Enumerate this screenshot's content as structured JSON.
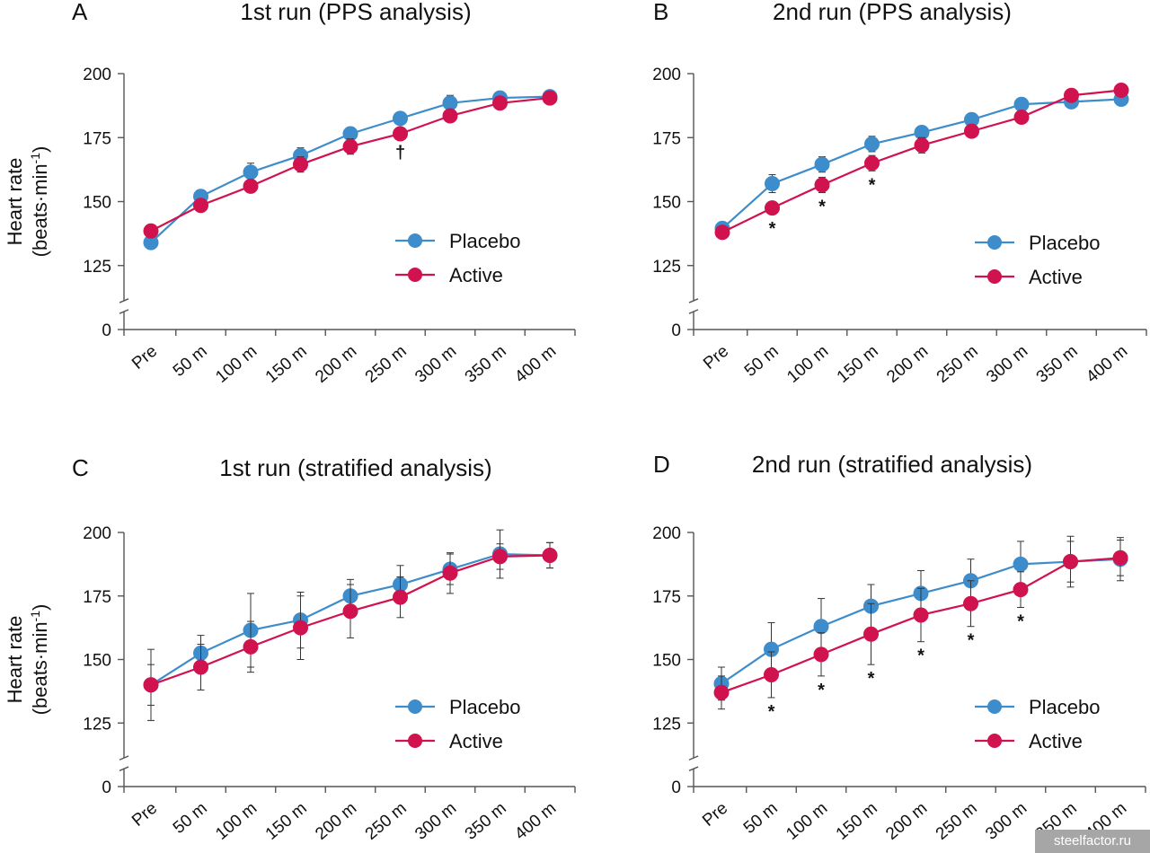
{
  "watermark": "steelfactor.ru",
  "colors": {
    "placebo": "#3d8ccb",
    "active": "#d0124f",
    "axis": "#555555",
    "error": "#333333"
  },
  "chart_data": [
    {
      "panel": "A",
      "title": "1st run (PPS analysis)",
      "type": "line",
      "ylabel": [
        "Heart rate",
        "(beats·min",
        "-1",
        ")"
      ],
      "xlabel": "",
      "categories": [
        "Pre",
        "50 m",
        "100 m",
        "150 m",
        "200 m",
        "250 m",
        "300 m",
        "350 m",
        "400 m"
      ],
      "y_ticks": [
        0,
        125,
        150,
        175,
        200
      ],
      "ylim": [
        0,
        200
      ],
      "broken_axis": true,
      "legend_position": "center-right",
      "series": [
        {
          "name": "Placebo",
          "values": [
            134,
            152,
            161.5,
            168,
            176.5,
            182.5,
            188.5,
            190.5,
            191
          ],
          "error": [
            1,
            2.5,
            3.5,
            3,
            2.5,
            1.5,
            3,
            1.5,
            1
          ]
        },
        {
          "name": "Active",
          "values": [
            138.5,
            148.5,
            156,
            164.5,
            171.5,
            176.5,
            183.5,
            188.5,
            190.5
          ],
          "error": [
            1,
            2,
            2,
            3,
            3,
            2,
            2,
            1.5,
            1
          ]
        }
      ],
      "annotations": [
        {
          "category": "250 m",
          "text": "†"
        }
      ]
    },
    {
      "panel": "B",
      "title": "2nd run (PPS analysis)",
      "type": "line",
      "ylabel": [],
      "xlabel": "",
      "categories": [
        "Pre",
        "50 m",
        "100 m",
        "150 m",
        "200 m",
        "250 m",
        "300 m",
        "350 m",
        "400 m"
      ],
      "y_ticks": [
        0,
        125,
        150,
        175,
        200
      ],
      "ylim": [
        0,
        200
      ],
      "broken_axis": true,
      "legend_position": "center-right",
      "series": [
        {
          "name": "Placebo",
          "values": [
            139.5,
            157,
            164.5,
            172.5,
            177,
            182,
            188,
            189,
            190
          ],
          "error": [
            2.5,
            3.5,
            3,
            3,
            2.5,
            2.5,
            2.5,
            1,
            1
          ]
        },
        {
          "name": "Active",
          "values": [
            138,
            147.5,
            156.5,
            165,
            172,
            177.5,
            183,
            191.5,
            193.5
          ],
          "error": [
            1.5,
            2.5,
            3,
            3,
            3,
            2,
            2,
            1.5,
            1
          ]
        }
      ],
      "annotations": [
        {
          "category": "50 m",
          "text": "*"
        },
        {
          "category": "100 m",
          "text": "*"
        },
        {
          "category": "150 m",
          "text": "*"
        }
      ]
    },
    {
      "panel": "C",
      "title": "1st run (stratified analysis)",
      "type": "line",
      "ylabel": [
        "Heart rate",
        "(beats·min",
        "-1",
        ")"
      ],
      "xlabel": "",
      "categories": [
        "Pre",
        "50 m",
        "100 m",
        "150 m",
        "200 m",
        "250 m",
        "300 m",
        "350 m",
        "400 m"
      ],
      "y_ticks": [
        0,
        125,
        150,
        175,
        200
      ],
      "ylim": [
        0,
        200
      ],
      "broken_axis": true,
      "legend_position": "center-right",
      "series": [
        {
          "name": "Placebo",
          "values": [
            140,
            152.5,
            161.5,
            165.5,
            175,
            179.5,
            185.5,
            191.5,
            191
          ],
          "error": [
            8,
            7,
            14.5,
            11,
            6.5,
            7.5,
            6,
            9.5,
            5
          ]
        },
        {
          "name": "Active",
          "values": [
            140,
            147,
            155,
            162.5,
            169,
            174.5,
            184,
            190.5,
            191
          ],
          "error": [
            14,
            9,
            10,
            12.5,
            10.5,
            8,
            8,
            5,
            5
          ]
        }
      ],
      "annotations": []
    },
    {
      "panel": "D",
      "title": "2nd run (stratified analysis)",
      "type": "line",
      "ylabel": [],
      "xlabel": "",
      "categories": [
        "Pre",
        "50 m",
        "100 m",
        "150 m",
        "200 m",
        "250 m",
        "300 m",
        "350 m",
        "400 m"
      ],
      "y_ticks": [
        0,
        125,
        150,
        175,
        200
      ],
      "ylim": [
        0,
        200
      ],
      "broken_axis": true,
      "legend_position": "center-right",
      "series": [
        {
          "name": "Placebo",
          "values": [
            140.5,
            154,
            163,
            171,
            176,
            181,
            187.5,
            188.5,
            189.5
          ],
          "error": [
            6.5,
            10.5,
            11,
            8.5,
            9,
            8.5,
            9,
            10,
            8.5
          ]
        },
        {
          "name": "Active",
          "values": [
            137,
            144,
            152,
            160,
            167.5,
            172,
            177.5,
            188.5,
            190
          ],
          "error": [
            6.5,
            9,
            8.5,
            12,
            10.5,
            9,
            7,
            8,
            7
          ]
        }
      ],
      "annotations": [
        {
          "category": "50 m",
          "text": "*"
        },
        {
          "category": "100 m",
          "text": "*"
        },
        {
          "category": "150 m",
          "text": "*"
        },
        {
          "category": "200 m",
          "text": "*"
        },
        {
          "category": "250 m",
          "text": "*"
        },
        {
          "category": "300 m",
          "text": "*"
        }
      ]
    }
  ]
}
